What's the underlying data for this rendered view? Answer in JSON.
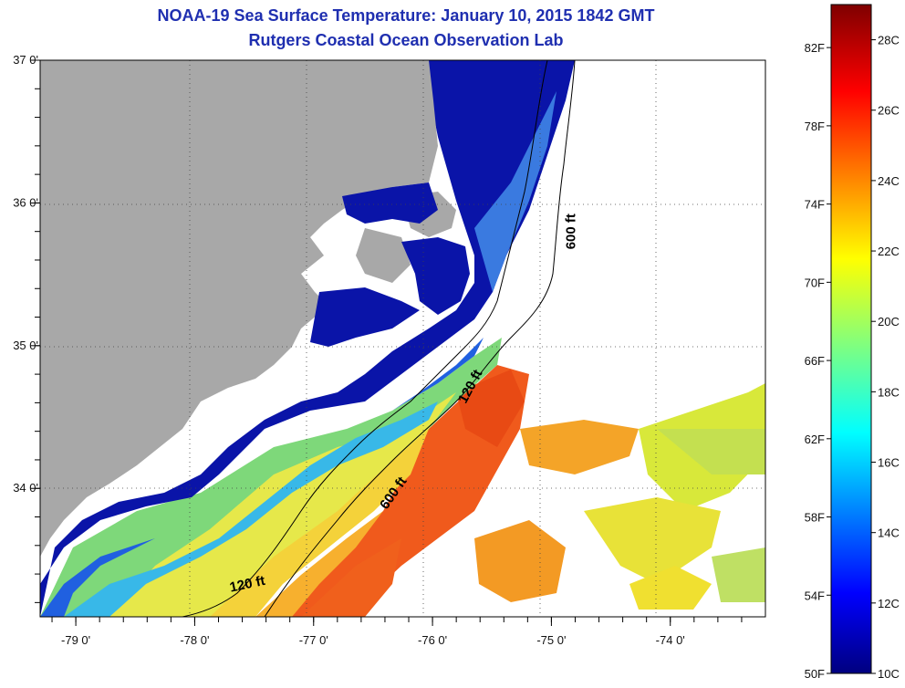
{
  "title": {
    "line1": "NOAA-19 Sea Surface Temperature:  January 10, 2015 1842 GMT",
    "line2": "Rutgers Coastal Ocean Observation Lab"
  },
  "map": {
    "lon_range": [
      -79.3,
      -73.2
    ],
    "lat_range": [
      33.1,
      37.0
    ],
    "lon_ticks": [
      {
        "value": -79,
        "label": "-79 0'"
      },
      {
        "value": -78,
        "label": "-78 0'"
      },
      {
        "value": -77,
        "label": "-77 0'"
      },
      {
        "value": -76,
        "label": "-76 0'"
      },
      {
        "value": -75,
        "label": "-75 0'"
      },
      {
        "value": -74,
        "label": "-74 0'"
      }
    ],
    "lat_ticks": [
      {
        "value": 37,
        "label": "37 0'"
      },
      {
        "value": 36,
        "label": "36 0'"
      },
      {
        "value": 35,
        "label": "35 0'"
      },
      {
        "value": 34,
        "label": "34 0'"
      }
    ],
    "contour_labels": [
      {
        "text": "600 ft",
        "lon": -74.8,
        "lat": 35.8,
        "rotate": -90
      },
      {
        "text": "120 ft",
        "lon": -75.65,
        "lat": 34.7,
        "rotate": -62
      },
      {
        "text": "600 ft",
        "lon": -76.3,
        "lat": 33.95,
        "rotate": -55
      },
      {
        "text": "120 ft",
        "lon": -77.55,
        "lat": 33.3,
        "rotate": -12
      }
    ],
    "colors": {
      "land": "#a8a8a8",
      "cloud": "#ffffff",
      "frame": "#000000",
      "grid": "#444444"
    }
  },
  "colorbar": {
    "min_c": 10,
    "max_c": 29,
    "fahrenheit_labels": [
      "82F",
      "78F",
      "74F",
      "70F",
      "66F",
      "62F",
      "58F",
      "54F",
      "50F"
    ],
    "fahrenheit_values": [
      82,
      78,
      74,
      70,
      66,
      62,
      58,
      54,
      50
    ],
    "celsius_labels": [
      "28C",
      "26C",
      "24C",
      "22C",
      "20C",
      "18C",
      "16C",
      "14C",
      "12C",
      "10C"
    ],
    "celsius_values": [
      28,
      26,
      24,
      22,
      20,
      18,
      16,
      14,
      12,
      10
    ]
  }
}
